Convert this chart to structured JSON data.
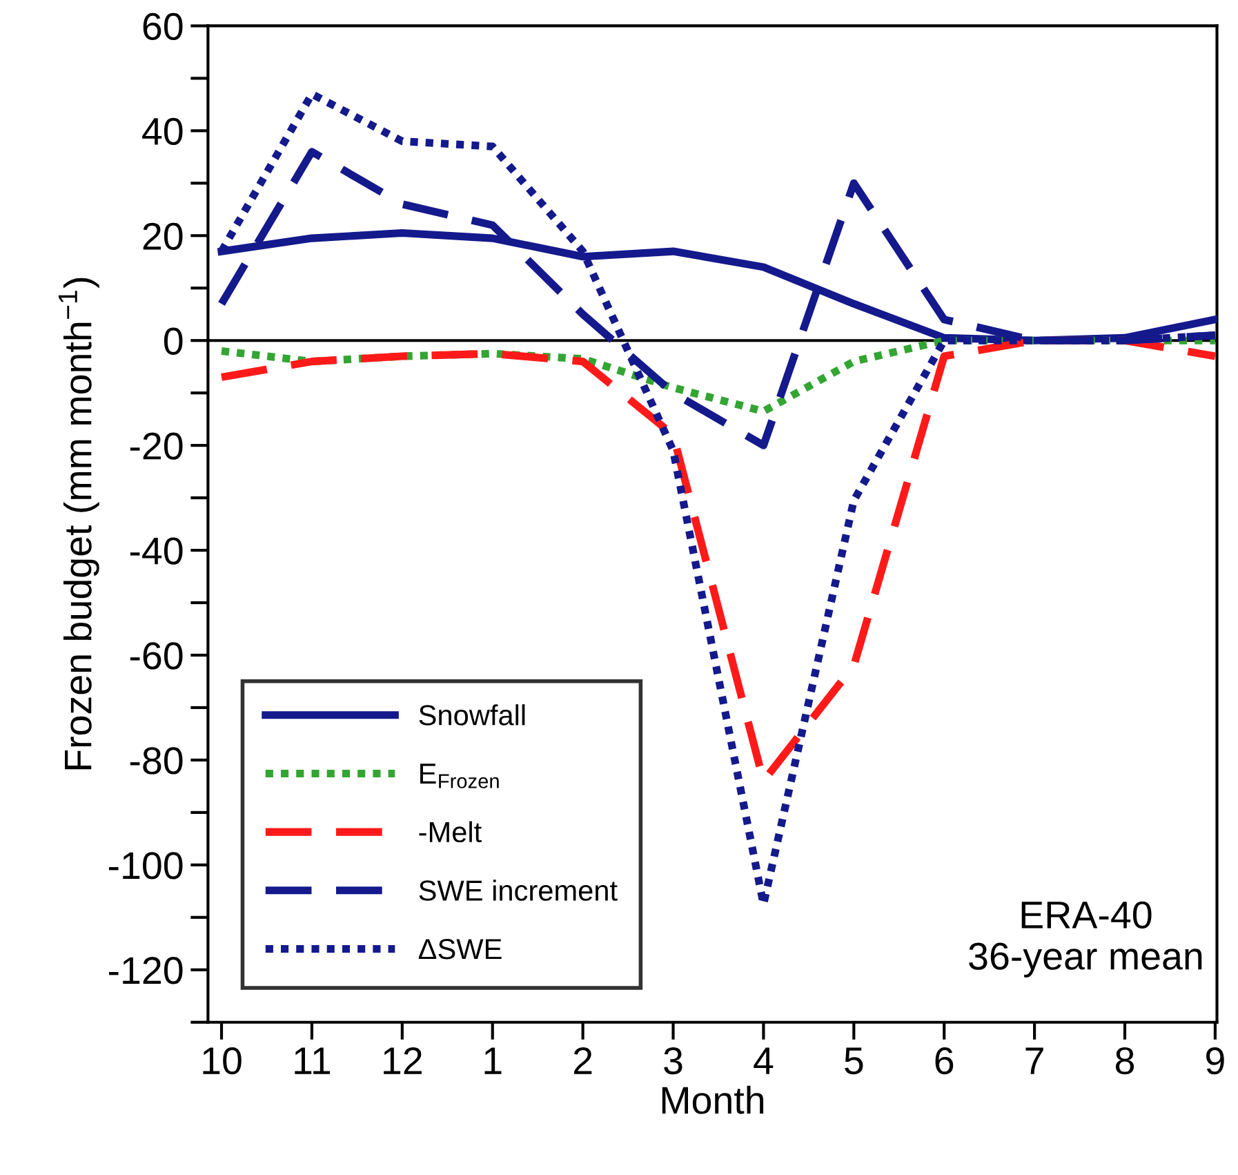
{
  "chart_data": {
    "type": "line",
    "xlabel": "Month",
    "ylabel": "Frozen budget (mm month$^{−1}$)",
    "categories": [
      "10",
      "11",
      "12",
      "1",
      "2",
      "3",
      "4",
      "5",
      "6",
      "7",
      "8",
      "9"
    ],
    "series": [
      {
        "name": "Snowfall",
        "color": "#14198c",
        "line_style": "solid",
        "values": [
          17,
          19.5,
          20.5,
          19.5,
          16,
          17,
          14,
          7,
          0.5,
          0,
          0.5,
          4
        ]
      },
      {
        "name": "E$_{Frozen}$",
        "color": "#33a532",
        "line_style": "dotted",
        "values": [
          -2,
          -4,
          -3,
          -2.5,
          -3.5,
          -9,
          -13.5,
          -4,
          0,
          0,
          0,
          0
        ]
      },
      {
        "name": "-Melt",
        "color": "#ff1a1a",
        "line_style": "dashed",
        "values": [
          -7,
          -4,
          -3,
          -2.5,
          -4,
          -18,
          -84,
          -62,
          -3,
          0,
          0,
          -3
        ]
      },
      {
        "name": "SWE increment",
        "color": "#14198c",
        "line_style": "dashed",
        "values": [
          7,
          36,
          26,
          22,
          5,
          -10,
          -20,
          30,
          4,
          0,
          0,
          1
        ]
      },
      {
        "name": "ΔSWE",
        "color": "#14198c",
        "line_style": "dotted",
        "values": [
          17,
          47,
          38,
          37,
          17,
          -21,
          -107.5,
          -30.5,
          0,
          0,
          0,
          1
        ]
      }
    ],
    "ylim": [
      -130,
      60
    ],
    "yticks": [
      60,
      {
        "value": 50,
        "label": null
      },
      40,
      {
        "value": 30,
        "label": null
      },
      20,
      {
        "value": 10,
        "label": null
      },
      0,
      {
        "value": -10,
        "label": null
      },
      -20,
      {
        "value": -30,
        "label": null
      },
      -40,
      {
        "value": -50,
        "label": null
      },
      -60,
      {
        "value": -70,
        "label": null
      },
      -80,
      {
        "value": -90,
        "label": null
      },
      -100,
      {
        "value": -110,
        "label": null
      },
      -120,
      {
        "value": -130,
        "label": null
      }
    ],
    "ref_lines": [
      {
        "axis": "y",
        "value": 0,
        "color": "#000000",
        "line_style": "solid"
      }
    ],
    "annotations": [
      "ERA-40\n36-year mean"
    ],
    "legend": "bottom left",
    "grid": false,
    "marker": "none"
  }
}
